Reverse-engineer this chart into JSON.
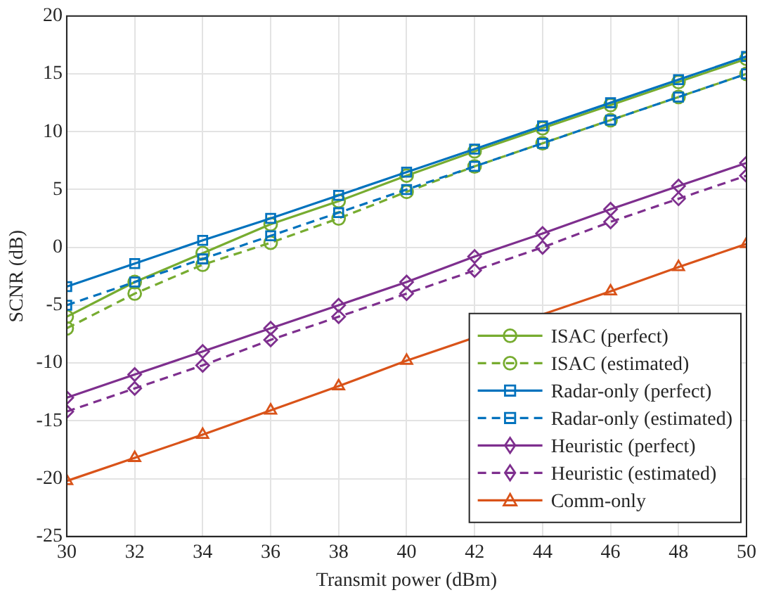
{
  "chart_data": {
    "type": "line",
    "xlabel": "Transmit power (dBm)",
    "ylabel": "SCNR (dB)",
    "x": [
      30,
      32,
      34,
      36,
      38,
      40,
      42,
      44,
      46,
      48,
      50
    ],
    "xlim": [
      30,
      50
    ],
    "xticks": [
      30,
      32,
      34,
      36,
      38,
      40,
      42,
      44,
      46,
      48,
      50
    ],
    "ylim": [
      -25,
      20
    ],
    "yticks": [
      -25,
      -20,
      -15,
      -10,
      -5,
      0,
      5,
      10,
      15,
      20
    ],
    "grid": true,
    "legend": "bottom right",
    "series": [
      {
        "name": "ISAC (perfect)",
        "color": "#77ac30",
        "marker": "circle",
        "line_style": "solid",
        "values": [
          -6,
          -3,
          -0.5,
          2,
          4,
          6.2,
          8.3,
          10.3,
          12.3,
          14.3,
          16.3
        ]
      },
      {
        "name": "ISAC (estimated)",
        "color": "#77ac30",
        "marker": "circle",
        "line_style": "dashed",
        "values": [
          -7,
          -4,
          -1.5,
          0.4,
          2.5,
          4.8,
          7,
          9,
          11,
          13,
          15
        ]
      },
      {
        "name": "Radar-only (perfect)",
        "color": "#0072bd",
        "marker": "square",
        "line_style": "solid",
        "values": [
          -3.4,
          -1.4,
          0.6,
          2.5,
          4.5,
          6.5,
          8.5,
          10.5,
          12.5,
          14.5,
          16.5
        ]
      },
      {
        "name": "Radar-only (estimated)",
        "color": "#0072bd",
        "marker": "square",
        "line_style": "dashed",
        "values": [
          -5,
          -3,
          -1,
          1,
          3,
          5,
          7,
          9,
          11,
          13,
          15
        ]
      },
      {
        "name": "Heuristic (perfect)",
        "color": "#7e2f8e",
        "marker": "diamond",
        "line_style": "solid",
        "values": [
          -13,
          -11,
          -9,
          -7,
          -5,
          -3,
          -0.8,
          1.2,
          3.3,
          5.3,
          7.3
        ]
      },
      {
        "name": "Heuristic (estimated)",
        "color": "#7e2f8e",
        "marker": "diamond",
        "line_style": "dashed",
        "values": [
          -14.2,
          -12.2,
          -10.2,
          -8,
          -6,
          -4,
          -2,
          0,
          2.2,
          4.2,
          6.2
        ]
      },
      {
        "name": "Comm-only",
        "color": "#d95319",
        "marker": "triangle",
        "line_style": "solid",
        "values": [
          -20.2,
          -18.2,
          -16.2,
          -14.1,
          -12,
          -9.8,
          null,
          null,
          -3.8,
          -1.7,
          0.3
        ]
      }
    ]
  }
}
